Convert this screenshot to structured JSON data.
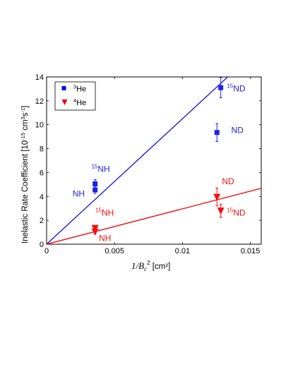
{
  "chart_data": {
    "type": "scatter",
    "xlabel": {
      "main": "1/B",
      "sub": "c",
      "sup": "2",
      "unit": " [cm²]"
    },
    "ylabel": {
      "pre": "Inelastic Rate Coefficient [10",
      "sup1": "-15",
      "mid": " cm",
      "sup2": "3",
      "mid2": "s",
      "sup3": "-1",
      "post": "]"
    },
    "xlim": [
      0,
      0.0158
    ],
    "ylim": [
      0,
      14
    ],
    "xticks": [
      {
        "value": 0,
        "label": "0"
      },
      {
        "value": 0.005,
        "label": "0.005"
      },
      {
        "value": 0.01,
        "label": "0.01"
      },
      {
        "value": 0.015,
        "label": "0.015"
      }
    ],
    "yticks": [
      {
        "value": 0,
        "label": "0"
      },
      {
        "value": 2,
        "label": "2"
      },
      {
        "value": 4,
        "label": "4"
      },
      {
        "value": 6,
        "label": "6"
      },
      {
        "value": 8,
        "label": "8"
      },
      {
        "value": 10,
        "label": "10"
      },
      {
        "value": 12,
        "label": "12"
      },
      {
        "value": 14,
        "label": "14"
      }
    ],
    "legend": {
      "placement": "top-left",
      "entries": [
        {
          "sup": "3",
          "text": "He",
          "color": "#0000ee",
          "marker": "square"
        },
        {
          "sup": "4",
          "text": "He",
          "color": "#ee0000",
          "marker": "triangle-down"
        }
      ]
    },
    "series": [
      {
        "name": "3He",
        "color": "#1f1fe0",
        "marker": "square",
        "points": [
          {
            "x": 0.00357,
            "y": 5.05,
            "err": 0.35
          },
          {
            "x": 0.00357,
            "y": 4.55,
            "err": 0.3
          },
          {
            "x": 0.01254,
            "y": 9.35,
            "err": 0.75
          },
          {
            "x": 0.01282,
            "y": 13.1,
            "err": 0.85
          }
        ],
        "fit": {
          "slope": 1050
        },
        "labels": [
          {
            "sup": "15",
            "text": "NH",
            "x": 0.0033,
            "y": 6.05
          },
          {
            "sup": "",
            "text": "NH",
            "x": 0.00191,
            "y": 3.98
          },
          {
            "sup": "",
            "text": "ND",
            "x": 0.01359,
            "y": 9.29
          },
          {
            "sup": "15",
            "text": "ND",
            "x": 0.01327,
            "y": 12.78
          }
        ]
      },
      {
        "name": "4He",
        "color": "#ee1111",
        "marker": "triangle-down",
        "points": [
          {
            "x": 0.00357,
            "y": 1.35,
            "err": 0.2
          },
          {
            "x": 0.00357,
            "y": 1.05,
            "err": 0.2
          },
          {
            "x": 0.01254,
            "y": 3.95,
            "err": 0.75
          },
          {
            "x": 0.01282,
            "y": 2.8,
            "err": 0.55
          }
        ],
        "fit": {
          "slope": 296
        },
        "labels": [
          {
            "sup": "15",
            "text": "NH",
            "x": 0.00359,
            "y": 2.4
          },
          {
            "sup": "",
            "text": "NH",
            "x": 0.00385,
            "y": 0.26
          },
          {
            "sup": "",
            "text": "ND",
            "x": 0.01291,
            "y": 5.02
          },
          {
            "sup": "15",
            "text": "ND",
            "x": 0.01327,
            "y": 2.4
          }
        ]
      }
    ]
  }
}
